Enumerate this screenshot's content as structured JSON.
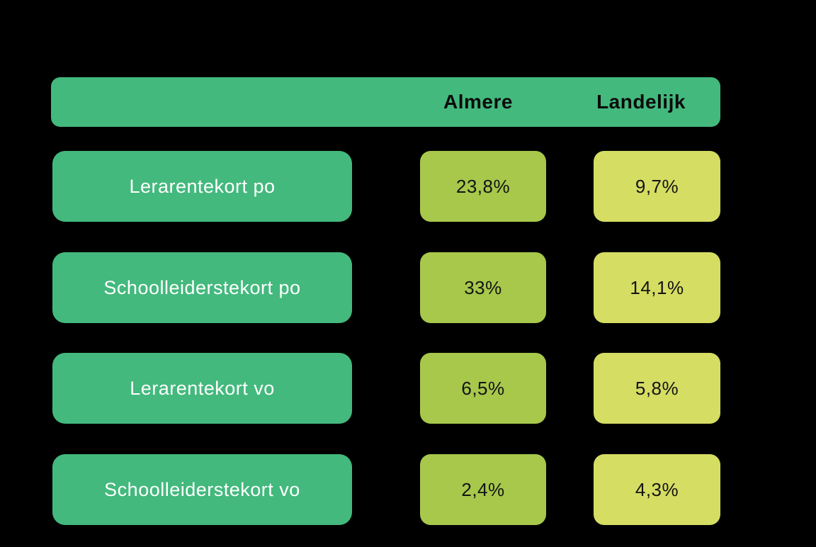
{
  "page": {
    "background_color": "#000000"
  },
  "colors": {
    "green_pill": "#43B97D",
    "almere_cell": "#A7C84B",
    "landelijk_cell": "#D5DD63",
    "header_text": "#0B0B0B",
    "cell_text": "#141414",
    "label_text": "#FFFFFF"
  },
  "chart_data": {
    "type": "table",
    "title": "",
    "columns": [
      "Almere",
      "Landelijk"
    ],
    "rows": [
      {
        "label": "Lerarentekort po",
        "almere": "23,8%",
        "landelijk": "9,7%",
        "almere_value": 23.8,
        "landelijk_value": 9.7
      },
      {
        "label": "Schoolleiderstekort po",
        "almere": "33%",
        "landelijk": "14,1%",
        "almere_value": 33,
        "landelijk_value": 14.1
      },
      {
        "label": "Lerarentekort vo",
        "almere": "6,5%",
        "landelijk": "5,8%",
        "almere_value": 6.5,
        "landelijk_value": 5.8
      },
      {
        "label": "Schoolleiderstekort vo",
        "almere": "2,4%",
        "landelijk": "4,3%",
        "almere_value": 2.4,
        "landelijk_value": 4.3
      }
    ],
    "layout": {
      "grid": false,
      "legend": false,
      "unit": "percent",
      "value_columns_order": [
        "almere",
        "landelijk"
      ]
    }
  }
}
